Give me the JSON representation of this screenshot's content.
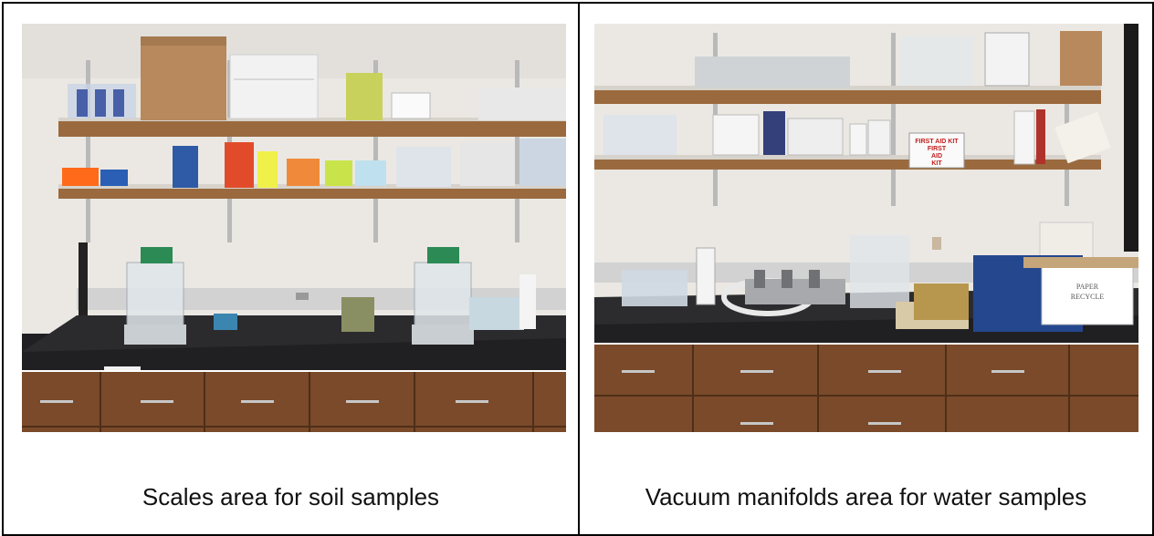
{
  "panels": [
    {
      "caption": "Scales area for soil samples",
      "photo_label": "lab-bench-with-scales"
    },
    {
      "caption": "Vacuum manifolds area for water samples",
      "photo_label": "lab-bench-with-vacuum-manifolds",
      "signs": {
        "first_aid_line1": "FIRST AID KIT",
        "first_aid_line2": "FIRST",
        "first_aid_line3": "AID",
        "first_aid_line4": "KIT",
        "paper_line1": "PAPER",
        "paper_line2": "RECYCLE"
      }
    }
  ],
  "colors": {
    "wall": "#e9e6e2",
    "shelf_wood": "#9a6a3e",
    "countertop": "#1f1f21",
    "cabinet_wood": "#7a4a2a",
    "frame": "#000000"
  }
}
